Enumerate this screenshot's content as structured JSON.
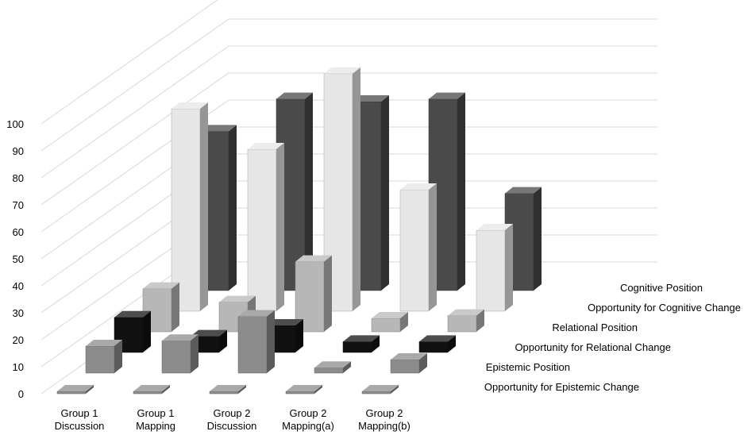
{
  "chart_data": {
    "type": "bar",
    "variant": "3d-clustered-depth",
    "categories": [
      [
        "Group 1",
        "Discussion"
      ],
      [
        "Group 1",
        "Mapping"
      ],
      [
        "Group 2",
        "Discussion"
      ],
      [
        "Group 2",
        "Mapping(a)"
      ],
      [
        "Group 2",
        "Mapping(b)"
      ]
    ],
    "series": [
      {
        "name": "Opportunity for Epistemic Change",
        "color": "#8c8c8c",
        "values": [
          0,
          0,
          0,
          0,
          0
        ]
      },
      {
        "name": "Epistemic Position",
        "color": "#8c8c8c",
        "values": [
          10,
          12,
          21,
          2,
          5
        ]
      },
      {
        "name": "Opportunity for Relational Change",
        "color": "#111111",
        "values": [
          13,
          6,
          10,
          4,
          4
        ]
      },
      {
        "name": "Relational Position",
        "color": "#b7b7b7",
        "values": [
          16,
          11,
          26,
          5,
          6
        ]
      },
      {
        "name": "Opportunity for Cognitive Change",
        "color": "#e6e6e6",
        "values": [
          75,
          60,
          88,
          45,
          30
        ]
      },
      {
        "name": "Cognitive Position",
        "color": "#4a4a4a",
        "values": [
          59,
          71,
          70,
          71,
          36
        ]
      }
    ],
    "yticks": [
      0,
      10,
      20,
      30,
      40,
      50,
      60,
      70,
      80,
      90,
      100
    ],
    "ylim": [
      0,
      100
    ],
    "grid": true,
    "legend": "depth-axis-right"
  }
}
